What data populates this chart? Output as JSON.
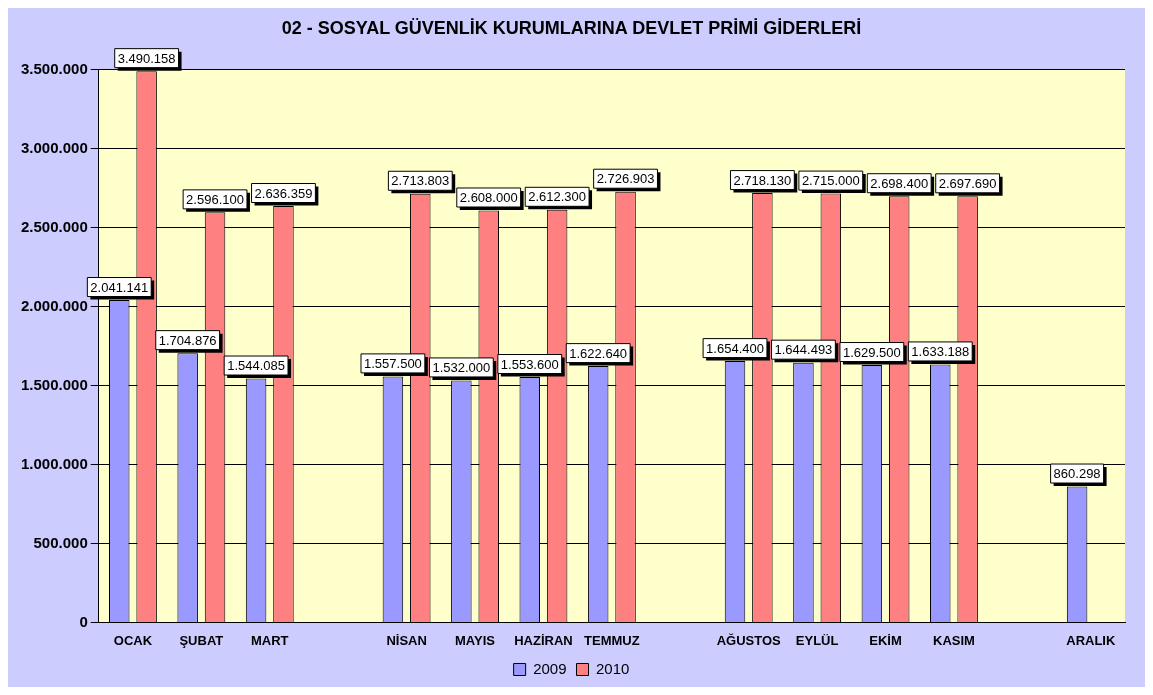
{
  "chart_data": {
    "type": "bar",
    "title": "02 - SOSYAL GÜVENLİK KURUMLARINA DEVLET PRİMİ GİDERLERİ",
    "categories": [
      "OCAK",
      "ŞUBAT",
      "MART",
      null,
      "NİSAN",
      "MAYIS",
      "HAZİRAN",
      "TEMMUZ",
      null,
      "AĞUSTOS",
      "EYLÜL",
      "EKİM",
      "KASIM",
      null,
      "ARALIK"
    ],
    "series": [
      {
        "name": "2009",
        "color": "#9999ff",
        "values": [
          2041141,
          1704876,
          1544085,
          null,
          1557500,
          1532000,
          1553600,
          1622640,
          null,
          1654400,
          1644493,
          1629500,
          1633188,
          null,
          860298
        ],
        "value_labels": [
          "2.041.141",
          "1.704.876",
          "1.544.085",
          null,
          "1.557.500",
          "1.532.000",
          "1.553.600",
          "1.622.640",
          null,
          "1.654.400",
          "1.644.493",
          "1.629.500",
          "1.633.188",
          null,
          "860.298"
        ]
      },
      {
        "name": "2010",
        "color": "#ff8080",
        "values": [
          3490158,
          2596100,
          2636359,
          null,
          2713803,
          2608000,
          2612300,
          2726903,
          null,
          2718130,
          2715000,
          2698400,
          2697690,
          null,
          null
        ],
        "value_labels": [
          "3.490.158",
          "2.596.100",
          "2.636.359",
          null,
          "2.713.803",
          "2.608.000",
          "2.612.300",
          "2.726.903",
          null,
          "2.718.130",
          "2.715.000",
          "2.698.400",
          "2.697.690",
          null,
          null
        ]
      }
    ],
    "ylim": [
      0,
      3500000
    ],
    "yticks": [
      {
        "value": 0,
        "label": "0"
      },
      {
        "value": 500000,
        "label": "500.000"
      },
      {
        "value": 1000000,
        "label": "1.000.000"
      },
      {
        "value": 1500000,
        "label": "1.500.000"
      },
      {
        "value": 2000000,
        "label": "2.000.000"
      },
      {
        "value": 2500000,
        "label": "2.500.000"
      },
      {
        "value": 3000000,
        "label": "3.000.000"
      },
      {
        "value": 3500000,
        "label": "3.500.000"
      }
    ],
    "grid": "y",
    "legend": "bottom"
  }
}
